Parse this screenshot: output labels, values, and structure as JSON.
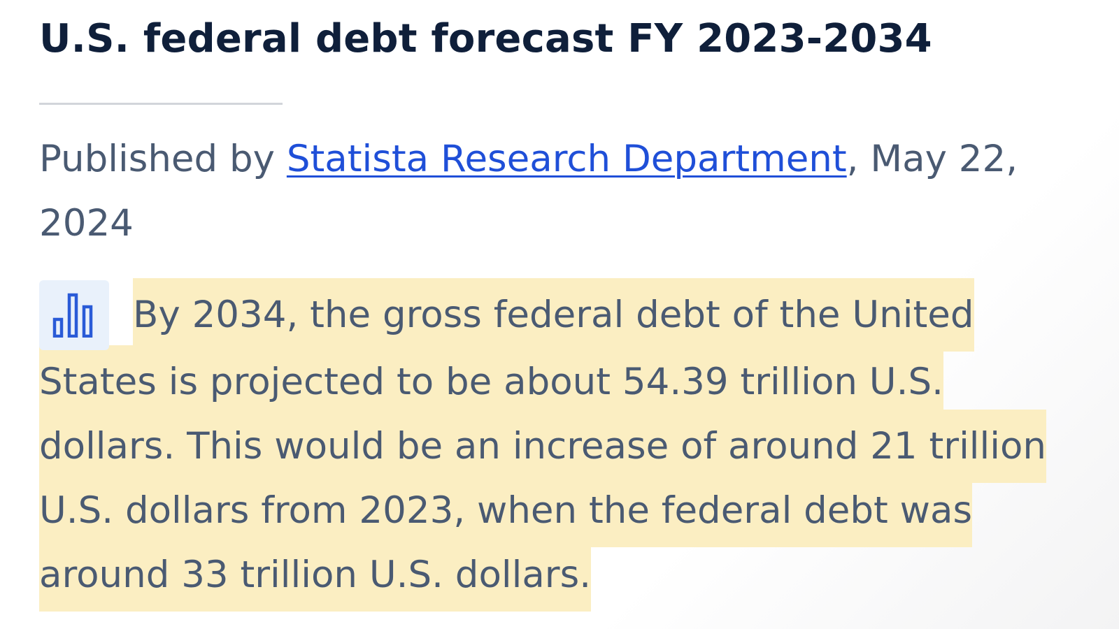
{
  "article": {
    "title": "U.S. federal debt forecast FY 2023-2034",
    "byline": {
      "prefix": "Published by ",
      "author": "Statista Research Department",
      "suffix": ", May 22, 2024"
    },
    "summary_icon": "bar-chart-icon",
    "summary_text": "By 2034, the gross federal debt of the United States is projected to be about 54.39 trillion U.S. dollars. This would be an increase of around 21 trillion U.S. dollars from 2023, when the federal debt was around 33 trillion U.S. dollars."
  },
  "colors": {
    "title": "#0f1f3a",
    "body_text": "#4a5a72",
    "link": "#1f4fd8",
    "highlight": "#fbeec2",
    "icon_badge_bg": "#e9f1fb",
    "icon_stroke": "#2a5bd7"
  }
}
